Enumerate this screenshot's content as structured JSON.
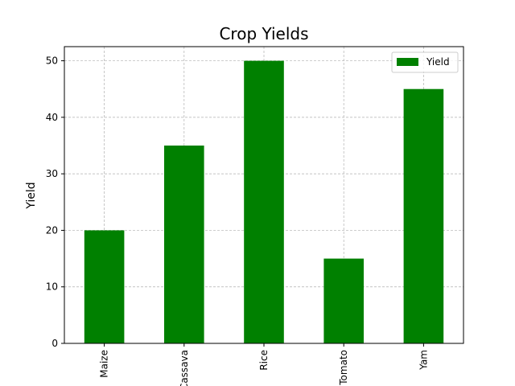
{
  "chart_data": {
    "type": "bar",
    "title": "Crop Yields",
    "xlabel": "",
    "ylabel": "Yield",
    "categories": [
      "Maize",
      "Cassava",
      "Rice",
      "Tomato",
      "Yam"
    ],
    "series": [
      {
        "name": "Yield",
        "values": [
          20,
          35,
          50,
          15,
          45
        ],
        "color": "#008000"
      }
    ],
    "ylim": [
      0,
      52.5
    ],
    "yticks": [
      0,
      10,
      20,
      30,
      40,
      50
    ],
    "grid": true,
    "legend_position": "top-right",
    "xtick_rotation": 90
  }
}
